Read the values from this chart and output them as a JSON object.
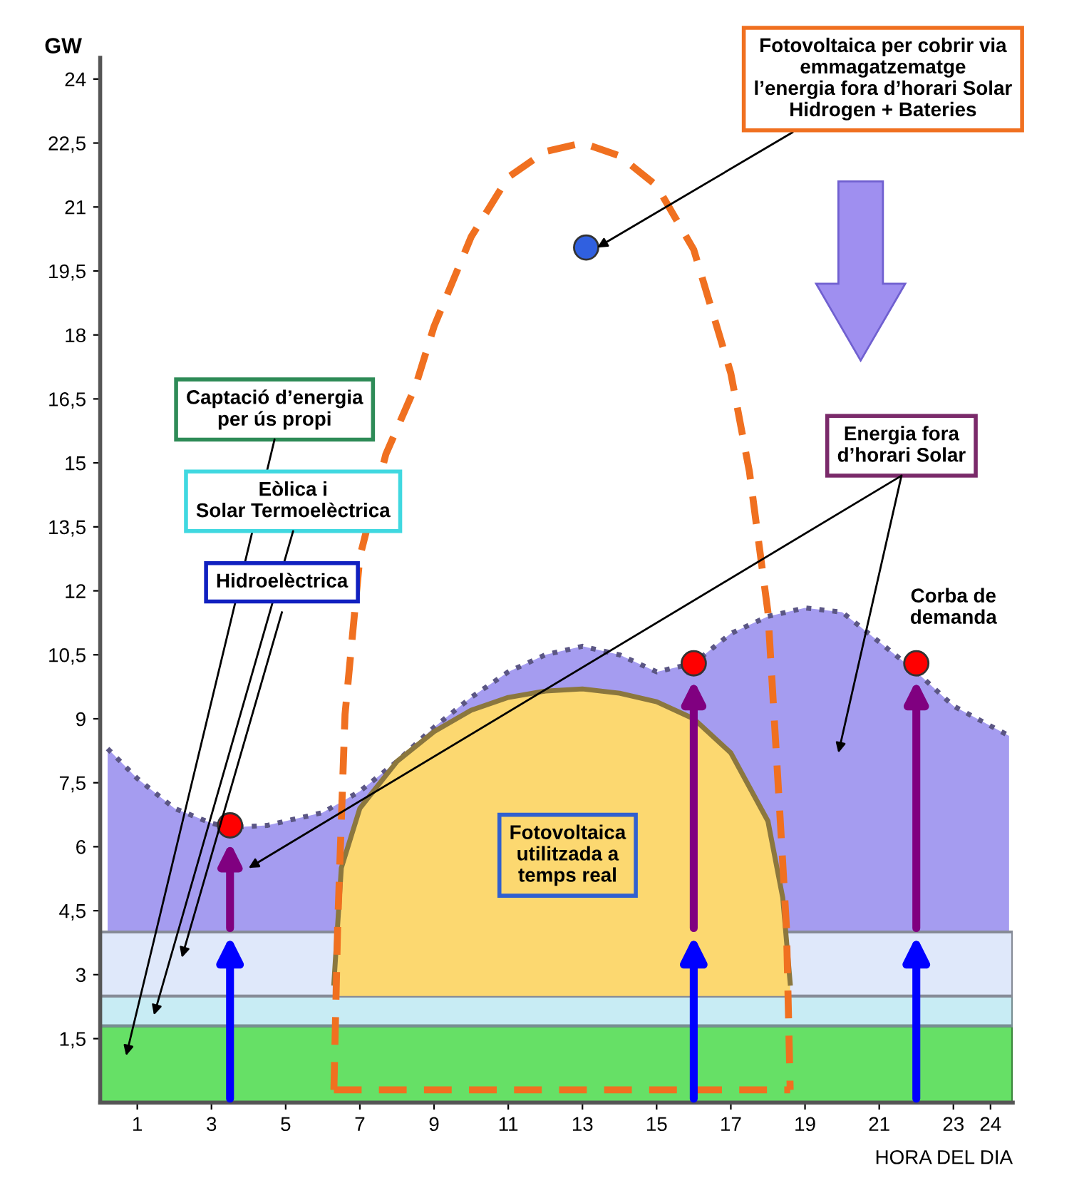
{
  "chart_data": {
    "type": "area",
    "ylabel": "GW",
    "xlabel": "HORA DEL DIA",
    "xlim": [
      0,
      24.6
    ],
    "ylim": [
      0,
      24.5
    ],
    "xticks": [
      1,
      3,
      5,
      7,
      9,
      11,
      13,
      15,
      17,
      19,
      21,
      23,
      24
    ],
    "yticks": [
      {
        "value": 1.5,
        "label": "1,5"
      },
      3,
      {
        "value": 4.5,
        "label": "4,5"
      },
      6,
      {
        "value": 7.5,
        "label": "7,5"
      },
      9,
      {
        "value": 10.5,
        "label": "10,5"
      },
      12,
      {
        "value": 13.5,
        "label": "13,5"
      },
      15,
      {
        "value": 16.5,
        "label": "16,5"
      },
      18,
      {
        "value": 19.5,
        "label": "19,5"
      },
      21,
      {
        "value": 22.5,
        "label": "22,5"
      },
      24
    ],
    "bands": [
      {
        "axis": "y",
        "from": 0,
        "to": 1.8,
        "color": "#66e066"
      },
      {
        "axis": "y",
        "from": 1.8,
        "to": 2.5,
        "color": "#c8ecf4"
      },
      {
        "axis": "y",
        "from": 2.5,
        "to": 4,
        "color": "#dfe8fa"
      }
    ],
    "series": [
      {
        "color": "#a59cf0",
        "line_style": "dotted",
        "x": [
          0.2,
          1,
          2,
          3,
          3.5,
          4.5,
          6,
          7,
          8,
          9,
          10,
          11,
          12,
          13,
          14,
          15,
          16,
          17,
          18,
          19,
          20,
          21,
          22,
          23,
          24.5
        ],
        "values": [
          8.3,
          7.6,
          6.9,
          6.55,
          6.45,
          6.5,
          6.8,
          7.3,
          8.0,
          8.8,
          9.5,
          10.1,
          10.5,
          10.7,
          10.5,
          10.1,
          10.3,
          11.0,
          11.4,
          11.6,
          11.5,
          10.8,
          10.1,
          9.3,
          8.6
        ]
      },
      {
        "color": "#fcd870",
        "x": [
          6.3,
          6.5,
          7,
          8,
          9,
          10,
          11,
          12,
          13,
          14,
          15,
          16,
          17,
          18,
          18.4,
          18.6
        ],
        "values": [
          2.8,
          5.5,
          6.9,
          8.0,
          8.7,
          9.2,
          9.5,
          9.65,
          9.7,
          9.6,
          9.4,
          9.0,
          8.2,
          6.6,
          4.8,
          2.8
        ]
      },
      {
        "type": "line",
        "color": "#f07020",
        "line_style": "dashed",
        "x": [
          6.3,
          6.4,
          6.6,
          7,
          7.7,
          8.5,
          9,
          10,
          11,
          12,
          13,
          14,
          15,
          16,
          17,
          17.5,
          18,
          18.3,
          18.5,
          18.6
        ],
        "values": [
          0.3,
          4.1,
          9.1,
          12.8,
          15.2,
          16.8,
          18.2,
          20.3,
          21.7,
          22.3,
          22.5,
          22.2,
          21.5,
          20.0,
          17.1,
          14.8,
          11.5,
          7.1,
          4.1,
          0.3
        ]
      },
      {
        "type": "line",
        "color": "#f07020",
        "line_style": "dashed",
        "x": [
          6.3,
          18.6
        ],
        "values": [
          0.3,
          0.3
        ]
      },
      {
        "type": "scatter",
        "marker": "circle",
        "color": "#ff0000",
        "x": [
          3.5,
          16,
          22
        ],
        "values": [
          6.5,
          10.3,
          10.3
        ]
      },
      {
        "type": "scatter",
        "marker": "circle",
        "color": "#3060e0",
        "x": [
          13.1
        ],
        "values": [
          20.05
        ]
      }
    ],
    "annotations": [
      "Captació d’energia\nper ús propi",
      "Eòlica i\nSolar Termoelèctrica",
      "Hidroelèctrica",
      "Energia fora\nd’horari Solar",
      {
        "text": "Fotovoltaica per cobrir via\nemmagatzematge\nl’energia fora d’horari Solar\nHidrogen + Bateries",
        "x": 13.4,
        "y": 20.05
      },
      "Corba de\ndemanda",
      "Fotovoltaica\nutilitzada a\ntemps real"
    ],
    "grid": false,
    "legend": false
  }
}
